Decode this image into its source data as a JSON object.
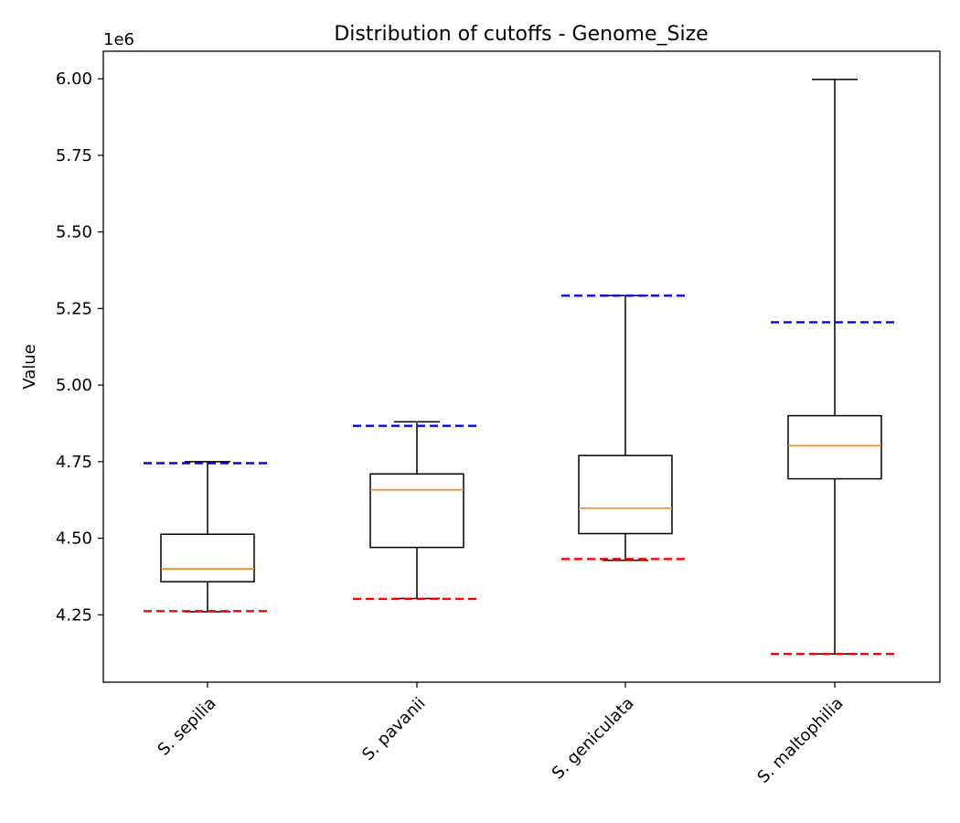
{
  "chart_data": {
    "type": "box",
    "title": "Distribution of cutoffs - Genome_Size",
    "xlabel": "",
    "ylabel": "Value",
    "y_offset_label": "1e6",
    "y_scale": 1000000,
    "ylim": [
      4030000,
      6090000
    ],
    "yticks": [
      4250000,
      4500000,
      4750000,
      5000000,
      5250000,
      5500000,
      5750000,
      6000000
    ],
    "ytick_labels": [
      "4.25",
      "4.50",
      "4.75",
      "5.00",
      "5.25",
      "5.50",
      "5.75",
      "6.00"
    ],
    "grid": false,
    "legend": "none",
    "colors": {
      "box": "#000000",
      "median": "#ff7f0e",
      "upper_cutoff": "#0000ff",
      "lower_cutoff": "#ff0000"
    },
    "categories": [
      "S. sepilia",
      "S. pavanii",
      "S. geniculata",
      "S. maltophilia"
    ],
    "boxes": [
      {
        "whisker_low": 4260000,
        "q1": 4358000,
        "median": 4400000,
        "q3": 4513000,
        "whisker_high": 4750000,
        "upper_cutoff": 4745000,
        "lower_cutoff": 4262000
      },
      {
        "whisker_low": 4303000,
        "q1": 4470000,
        "median": 4658000,
        "q3": 4710000,
        "whisker_high": 4880000,
        "upper_cutoff": 4867000,
        "lower_cutoff": 4302000
      },
      {
        "whisker_low": 4428000,
        "q1": 4515000,
        "median": 4598000,
        "q3": 4770000,
        "whisker_high": 5292000,
        "upper_cutoff": 5292000,
        "lower_cutoff": 4432000
      },
      {
        "whisker_low": 4122000,
        "q1": 4694000,
        "median": 4802000,
        "q3": 4900000,
        "whisker_high": 5998000,
        "upper_cutoff": 5205000,
        "lower_cutoff": 4122000
      }
    ]
  }
}
